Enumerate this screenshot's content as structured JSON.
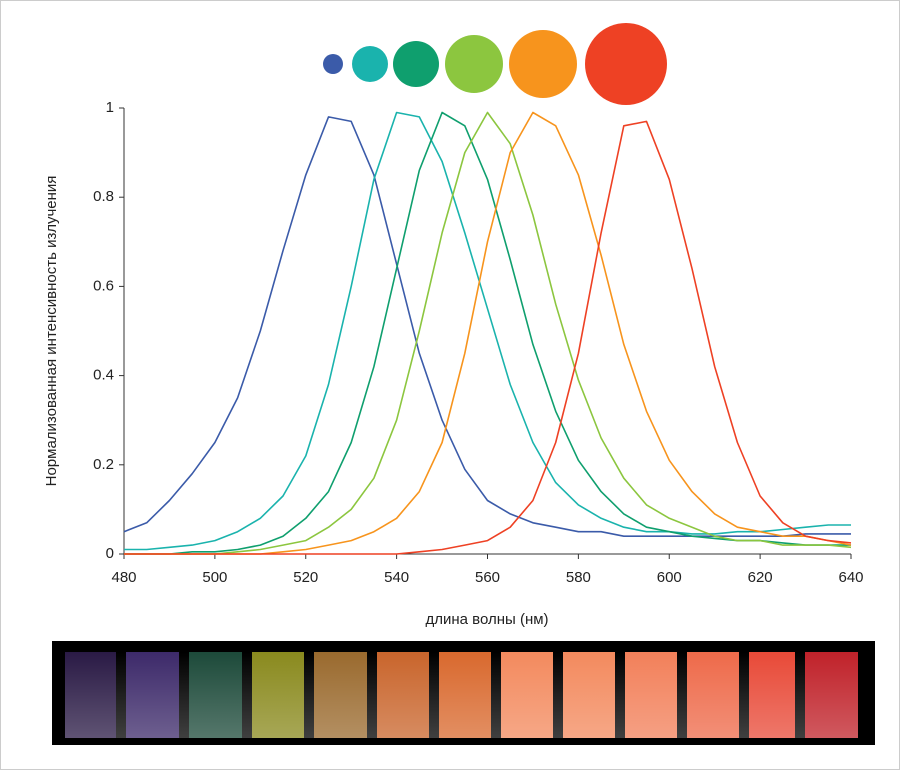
{
  "chart_data": {
    "type": "line",
    "x_label": "длина волны (нм)",
    "y_label": "Нормализованная интенсивность излучения",
    "xlim": [
      480,
      640
    ],
    "xticks": [
      480,
      500,
      520,
      540,
      560,
      580,
      600,
      620,
      640
    ],
    "ylim": [
      0,
      1
    ],
    "yticks": [
      0,
      0.2,
      0.4,
      0.6,
      0.8,
      1
    ],
    "x": [
      480,
      485,
      490,
      495,
      500,
      505,
      510,
      515,
      520,
      525,
      530,
      535,
      540,
      545,
      550,
      555,
      560,
      565,
      570,
      575,
      580,
      585,
      590,
      595,
      600,
      605,
      610,
      615,
      620,
      625,
      630,
      635,
      640
    ],
    "series": [
      {
        "color": "#3b5ba9",
        "values": [
          0.05,
          0.07,
          0.12,
          0.18,
          0.25,
          0.35,
          0.5,
          0.68,
          0.85,
          0.98,
          0.97,
          0.85,
          0.65,
          0.45,
          0.3,
          0.19,
          0.12,
          0.09,
          0.07,
          0.06,
          0.05,
          0.05,
          0.04,
          0.04,
          0.04,
          0.04,
          0.04,
          0.04,
          0.04,
          0.04,
          0.045,
          0.045,
          0.045
        ]
      },
      {
        "color": "#1ab3ad",
        "values": [
          0.01,
          0.01,
          0.015,
          0.02,
          0.03,
          0.05,
          0.08,
          0.13,
          0.22,
          0.38,
          0.6,
          0.84,
          0.99,
          0.98,
          0.88,
          0.72,
          0.55,
          0.38,
          0.25,
          0.16,
          0.11,
          0.08,
          0.06,
          0.05,
          0.05,
          0.045,
          0.045,
          0.05,
          0.05,
          0.055,
          0.06,
          0.065,
          0.065
        ]
      },
      {
        "color": "#0f9f6e",
        "values": [
          0,
          0,
          0,
          0.005,
          0.005,
          0.01,
          0.02,
          0.04,
          0.08,
          0.14,
          0.25,
          0.42,
          0.64,
          0.86,
          0.99,
          0.96,
          0.84,
          0.66,
          0.47,
          0.32,
          0.21,
          0.14,
          0.09,
          0.06,
          0.05,
          0.04,
          0.035,
          0.03,
          0.03,
          0.025,
          0.02,
          0.02,
          0.02
        ]
      },
      {
        "color": "#8cc63f",
        "values": [
          0,
          0,
          0,
          0,
          0,
          0.005,
          0.01,
          0.02,
          0.03,
          0.06,
          0.1,
          0.17,
          0.3,
          0.5,
          0.72,
          0.9,
          0.99,
          0.92,
          0.76,
          0.56,
          0.39,
          0.26,
          0.17,
          0.11,
          0.08,
          0.06,
          0.04,
          0.03,
          0.03,
          0.02,
          0.02,
          0.02,
          0.015
        ]
      },
      {
        "color": "#f7941d",
        "values": [
          0,
          0,
          0,
          0,
          0,
          0,
          0,
          0.005,
          0.01,
          0.02,
          0.03,
          0.05,
          0.08,
          0.14,
          0.25,
          0.45,
          0.7,
          0.9,
          0.99,
          0.96,
          0.85,
          0.67,
          0.47,
          0.32,
          0.21,
          0.14,
          0.09,
          0.06,
          0.05,
          0.04,
          0.04,
          0.03,
          0.02
        ]
      },
      {
        "color": "#ee4124",
        "values": [
          0,
          0,
          0,
          0,
          0,
          0,
          0,
          0,
          0,
          0,
          0,
          0,
          0,
          0.005,
          0.01,
          0.02,
          0.03,
          0.06,
          0.12,
          0.25,
          0.45,
          0.72,
          0.96,
          0.97,
          0.84,
          0.64,
          0.42,
          0.25,
          0.13,
          0.07,
          0.04,
          0.03,
          0.025
        ]
      }
    ]
  }
}
